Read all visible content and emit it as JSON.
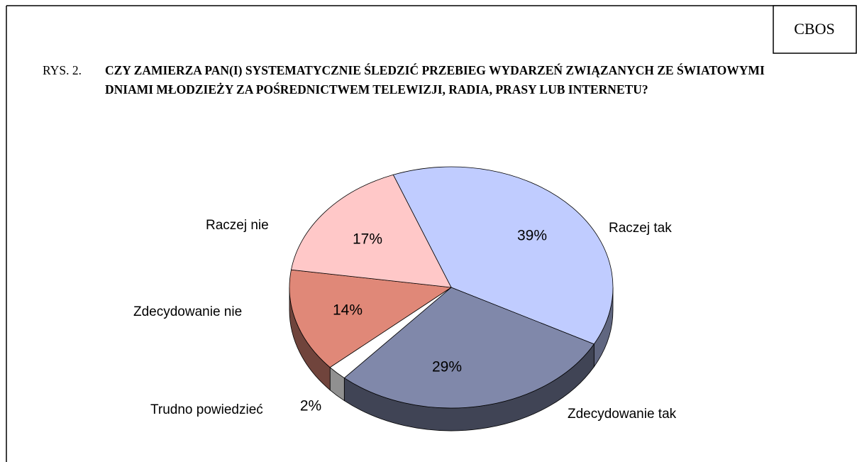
{
  "source": "CBOS",
  "chart_data": {
    "type": "pie3d",
    "figure_label": "RYS. 2.",
    "title": "CZY ZAMIERZA PAN(I) SYSTEMATYCZNIE ŚLEDZIĆ PRZEBIEG WYDARZEŃ ZWIĄZANYCH ZE ŚWIATOWYMI DNIAMI MŁODZIEŻY ZA POŚREDNICTWEM TELEWIZJI, RADIA, PRASY LUB INTERNETU?",
    "categories": [
      "Raczej tak",
      "Zdecydowanie tak",
      "Trudno powiedzieć",
      "Zdecydowanie nie",
      "Raczej nie"
    ],
    "values": [
      39,
      29,
      2,
      14,
      17
    ],
    "value_labels": [
      "39%",
      "29%",
      "2%",
      "14%",
      "17%"
    ],
    "colors": [
      "#c0ccff",
      "#8088aa",
      "#ffffff",
      "#e08878",
      "#ffc8c8"
    ]
  }
}
